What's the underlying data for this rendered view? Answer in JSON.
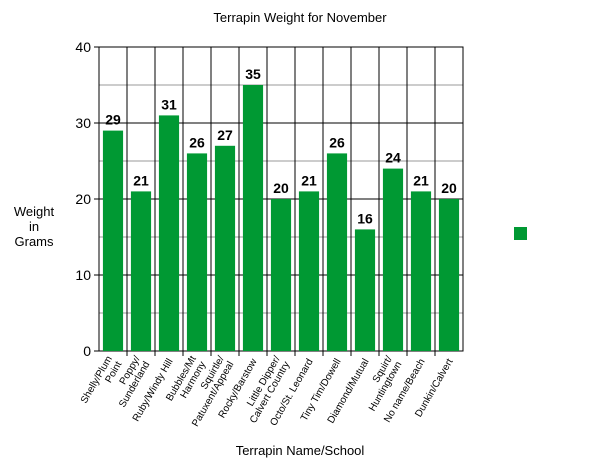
{
  "chart_data": {
    "type": "bar",
    "title": "Terrapin Weight for November",
    "x_label": "Terrapin Name/School",
    "y_label": "Weight\nin\nGrams",
    "categories": [
      "Shelly/Plum\nPoint",
      "Poppy/\nSunderland",
      "Ruby/Windy Hill",
      "Bubbles/Mt\nHarmony",
      "Squirtle/\nPatuxent/Appeal",
      "Rocky/Barstow",
      "Little Dipper/\nCalvert Country",
      "Octo/St. Leonard",
      "Tiny Tim/Dowell",
      "Diamond/Mutual",
      "Squirt/\nHuntingtown",
      "No name/Beach",
      "Dunkin/Calvert"
    ],
    "series": [
      {
        "color": "#009933",
        "values": [
          29,
          21,
          31,
          26,
          27,
          35,
          20,
          21,
          26,
          16,
          24,
          21,
          20
        ]
      }
    ],
    "ylim": [
      0,
      40
    ],
    "yticks": [
      0,
      10,
      20,
      30,
      40
    ],
    "minor_yticks": [
      5,
      15,
      25,
      35
    ],
    "grid": true,
    "legend": "right"
  }
}
